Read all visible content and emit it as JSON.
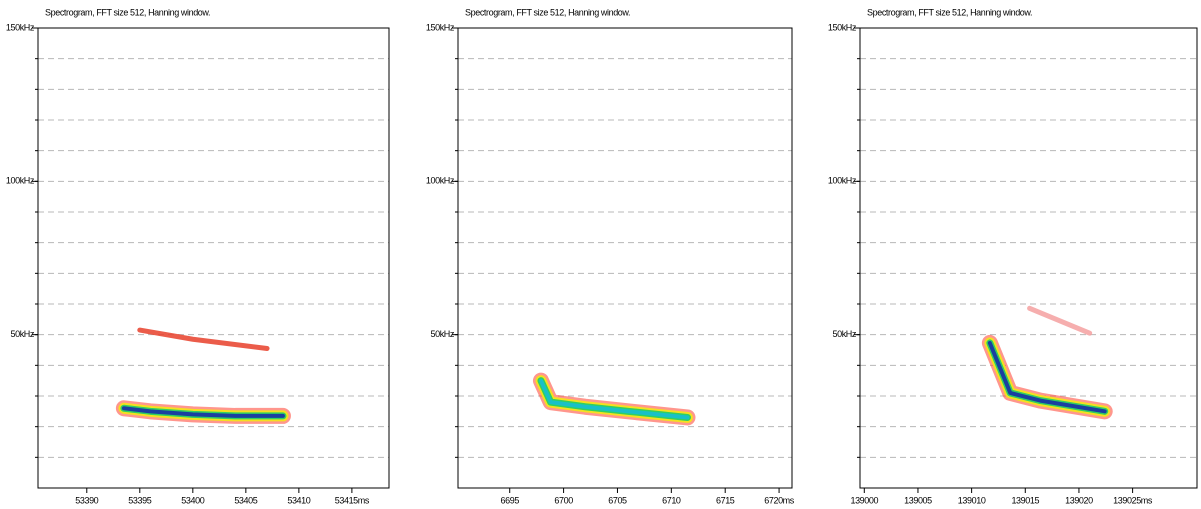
{
  "chart_data": [
    {
      "type": "spectrogram",
      "title": "Spectrogram, FFT size 512, Hanning window.",
      "xlim": [
        53385.4,
        53418.5
      ],
      "xticks": [
        53390,
        53395,
        53400,
        53405,
        53410,
        {
          "value": 53415,
          "label": "53415ms"
        }
      ],
      "ylim": [
        0,
        150
      ],
      "yticks": [
        {
          "value": 50,
          "label": "50kHz"
        },
        {
          "value": 100,
          "label": "100kHz"
        },
        {
          "value": 150,
          "label": "150kHz"
        }
      ],
      "minor_yticks": [
        10,
        20,
        30,
        40,
        50,
        60,
        70,
        80,
        90,
        100,
        110,
        120,
        130,
        140
      ],
      "grid": true,
      "series": [
        {
          "color": "#1a3fa0",
          "halo": true,
          "x": [
            53393.5,
            53396,
            53400,
            53404,
            53408.5
          ],
          "values": [
            26,
            25,
            24,
            23.5,
            23.5
          ]
        },
        {
          "color": "#e8402a",
          "halo": false,
          "x": [
            53395,
            53400,
            53407
          ],
          "values": [
            51.5,
            48.5,
            45.5
          ]
        }
      ]
    },
    {
      "type": "spectrogram",
      "title": "Spectrogram, FFT size 512, Hanning window.",
      "xlim": [
        6690.2,
        6721.2
      ],
      "xticks": [
        6695,
        6700,
        6705,
        6710,
        6715,
        {
          "value": 6720,
          "label": "6720ms"
        }
      ],
      "ylim": [
        0,
        150
      ],
      "yticks": [
        {
          "value": 50,
          "label": "50kHz"
        },
        {
          "value": 100,
          "label": "100kHz"
        },
        {
          "value": 150,
          "label": "150kHz"
        }
      ],
      "minor_yticks": [
        10,
        20,
        30,
        40,
        50,
        60,
        70,
        80,
        90,
        100,
        110,
        120,
        130,
        140
      ],
      "grid": true,
      "series": [
        {
          "color": "#19c0c8",
          "halo": true,
          "x": [
            6697.9,
            6698.8,
            6702,
            6706,
            6711.5
          ],
          "values": [
            35,
            28,
            26.5,
            25,
            23
          ]
        }
      ]
    },
    {
      "type": "spectrogram",
      "title": "Spectrogram, FFT size 512, Hanning window.",
      "xlim": [
        138999.6,
        139031
      ],
      "xticks": [
        139000,
        139005,
        139010,
        139015,
        139020,
        {
          "value": 139025,
          "label": "139025ms"
        }
      ],
      "ylim": [
        0,
        150
      ],
      "yticks": [
        {
          "value": 50,
          "label": "50kHz"
        },
        {
          "value": 100,
          "label": "100kHz"
        },
        {
          "value": 150,
          "label": "150kHz"
        }
      ],
      "minor_yticks": [
        10,
        20,
        30,
        40,
        50,
        60,
        70,
        80,
        90,
        100,
        110,
        120,
        130,
        140
      ],
      "grid": true,
      "series": [
        {
          "color": "#1a3fa0",
          "halo": true,
          "x": [
            139011.7,
            139013.6,
            139016.4,
            139022.4
          ],
          "values": [
            47.3,
            31,
            28.5,
            25
          ]
        },
        {
          "color": "#f4a0a0",
          "halo": false,
          "x": [
            139015.4,
            139021
          ],
          "values": [
            58.6,
            50.5
          ]
        }
      ]
    }
  ]
}
